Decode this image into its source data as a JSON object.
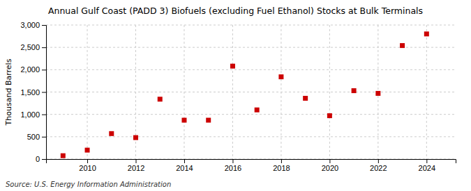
{
  "chart_data": {
    "type": "scatter",
    "title": "Annual Gulf Coast (PADD 3) Biofuels (excluding Fuel Ethanol) Stocks at Bulk Terminals",
    "ylabel": "Thousand Barrels",
    "source": "Source: U.S. Energy Information Administration",
    "x": [
      2009,
      2010,
      2011,
      2012,
      2013,
      2014,
      2015,
      2016,
      2017,
      2018,
      2019,
      2020,
      2021,
      2022,
      2023,
      2024
    ],
    "values": [
      75,
      200,
      570,
      480,
      1340,
      870,
      870,
      2080,
      1100,
      1840,
      1360,
      970,
      1530,
      1470,
      2540,
      2800
    ],
    "color": "#cc0000",
    "marker": "square",
    "xlim": [
      2008.3,
      2025.2
    ],
    "xticks": [
      2010,
      2012,
      2014,
      2016,
      2018,
      2020,
      2022,
      2024
    ],
    "ylim": [
      0,
      3000
    ],
    "yticks": [
      0,
      500,
      {
        "value": 1000,
        "label": "1,000"
      },
      {
        "value": 1500,
        "label": "1,500"
      },
      {
        "value": 2000,
        "label": "2,000"
      },
      {
        "value": 2500,
        "label": "2,500"
      },
      {
        "value": 3000,
        "label": "3,000"
      }
    ],
    "grid": true
  }
}
